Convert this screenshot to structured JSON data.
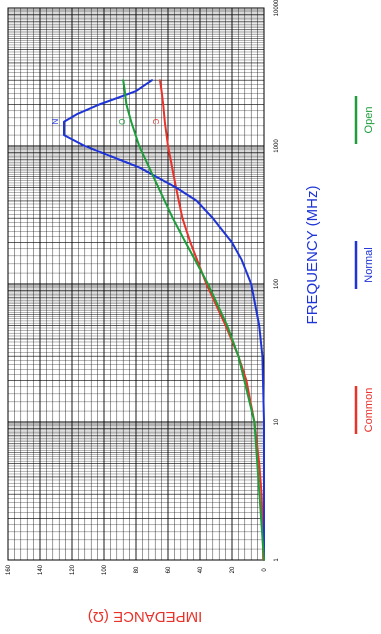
{
  "chart_data": {
    "type": "line",
    "rotation": "rotated 90 degrees clockwise",
    "xlabel": "FREQUENCY (MHz)",
    "ylabel": "IMPEDANCE (Ω)",
    "x_scale": "log",
    "xlim": [
      1,
      10000
    ],
    "x_ticks": [
      "1",
      "10",
      "100",
      "1000",
      "10000"
    ],
    "ylim": [
      0,
      160
    ],
    "y_ticks": [
      "0",
      "20",
      "40",
      "60",
      "80",
      "100",
      "120",
      "140",
      "160"
    ],
    "grid": true,
    "legend_position": "right",
    "series": [
      {
        "name": "Common",
        "color": "#e8322a",
        "curve_label": "C",
        "x": [
          1,
          2,
          3,
          5,
          10,
          20,
          30,
          50,
          100,
          200,
          300,
          500,
          1000,
          1500,
          2000,
          2500,
          3000
        ],
        "y": [
          0.5,
          1,
          1.5,
          3,
          6,
          11,
          16,
          24,
          36,
          46,
          51,
          55,
          60,
          62,
          63,
          64,
          65
        ]
      },
      {
        "name": "Normal",
        "color": "#1e34d6",
        "curve_label": "N",
        "x": [
          1,
          10,
          30,
          50,
          100,
          150,
          200,
          300,
          400,
          500,
          700,
          1000,
          1200,
          1500,
          1700,
          2000,
          2500,
          3000
        ],
        "y": [
          0,
          0,
          1,
          3,
          8,
          14,
          20,
          32,
          42,
          55,
          78,
          112,
          125,
          125,
          117,
          103,
          80,
          70
        ]
      },
      {
        "name": "Open",
        "color": "#1e9e3a",
        "curve_label": "O",
        "x": [
          1,
          10,
          30,
          50,
          100,
          200,
          300,
          500,
          1000,
          1500,
          2000,
          2500,
          3000
        ],
        "y": [
          0,
          6,
          16,
          23,
          35,
          49,
          57,
          66,
          78,
          83,
          86,
          87,
          88
        ]
      }
    ]
  }
}
